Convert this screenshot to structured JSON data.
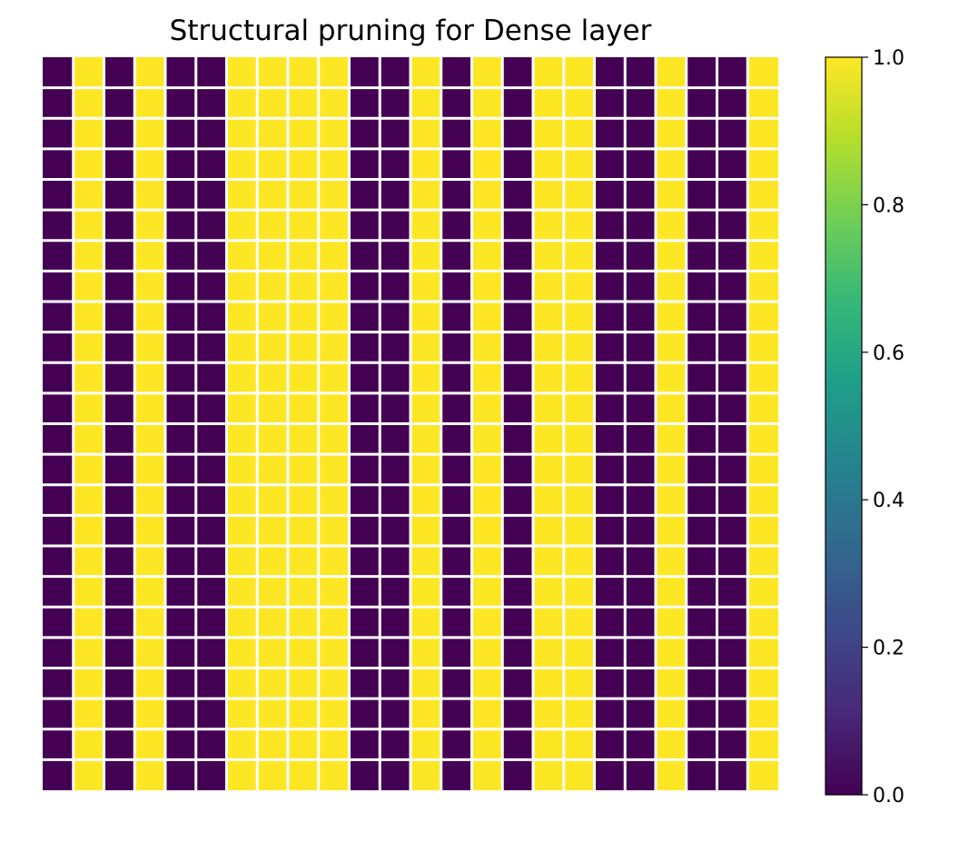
{
  "chart_data": {
    "type": "heatmap",
    "title": "Structural pruning for Dense layer",
    "xlabel": "",
    "ylabel": "",
    "axes_visible": false,
    "n_rows": 24,
    "n_cols": 24,
    "column_values": [
      0,
      1,
      0,
      1,
      0,
      0,
      1,
      1,
      1,
      1,
      0,
      0,
      1,
      0,
      1,
      0,
      1,
      1,
      0,
      0,
      1,
      0,
      0,
      1
    ],
    "row_pattern_note_free": true,
    "colormap": "viridis",
    "clim": [
      0.0,
      1.0
    ],
    "colors": {
      "low": "#440154",
      "high": "#fde725",
      "cell_gap": "#ffffff"
    },
    "colorbar": {
      "ticks": [
        0.0,
        0.2,
        0.4,
        0.6,
        0.8,
        1.0
      ],
      "tick_labels": [
        "0.0",
        "0.2",
        "0.4",
        "0.6",
        "0.8",
        "1.0"
      ],
      "stops": [
        "#440154",
        "#482878",
        "#3e4989",
        "#31688e",
        "#26828e",
        "#1f9e89",
        "#35b779",
        "#6ece58",
        "#b5de2b",
        "#fde725"
      ]
    }
  }
}
